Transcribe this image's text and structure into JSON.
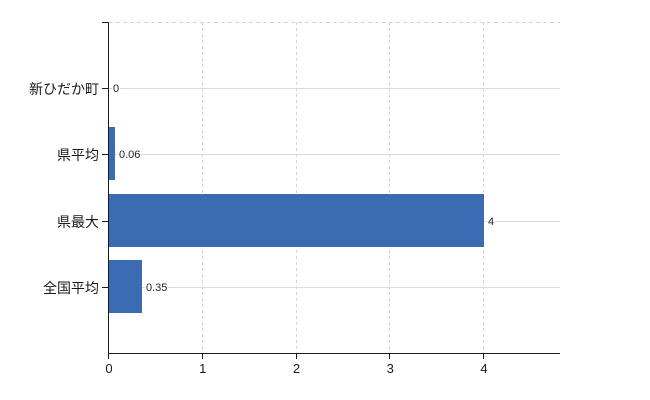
{
  "chart_data": {
    "type": "bar",
    "orientation": "horizontal",
    "title": "",
    "xlabel": "",
    "ylabel": "",
    "categories": [
      "新ひだか町",
      "県平均",
      "県最大",
      "全国平均"
    ],
    "values": [
      0,
      0.06,
      4,
      0.35
    ],
    "value_labels": [
      "0",
      "0.06",
      "4",
      "0.35"
    ],
    "x_ticks": [
      0,
      1,
      2,
      3,
      4
    ],
    "x_tick_labels": [
      "0",
      "1",
      "2",
      "3",
      "4"
    ],
    "xlim": [
      0,
      4.82
    ],
    "grid": "dashed vertical gridlines at each x tick; light horizontal leader line from each value label to right edge; dashed top border",
    "legend": "none"
  },
  "colors": {
    "bar": "#3b6cb3",
    "axis": "#1a1a1a",
    "grid_vertical": "#d4d4d4",
    "leader_line": "#d7dfd3",
    "value_text": "#262626",
    "label_text": "#1a1a1a",
    "background": "#ffffff"
  }
}
